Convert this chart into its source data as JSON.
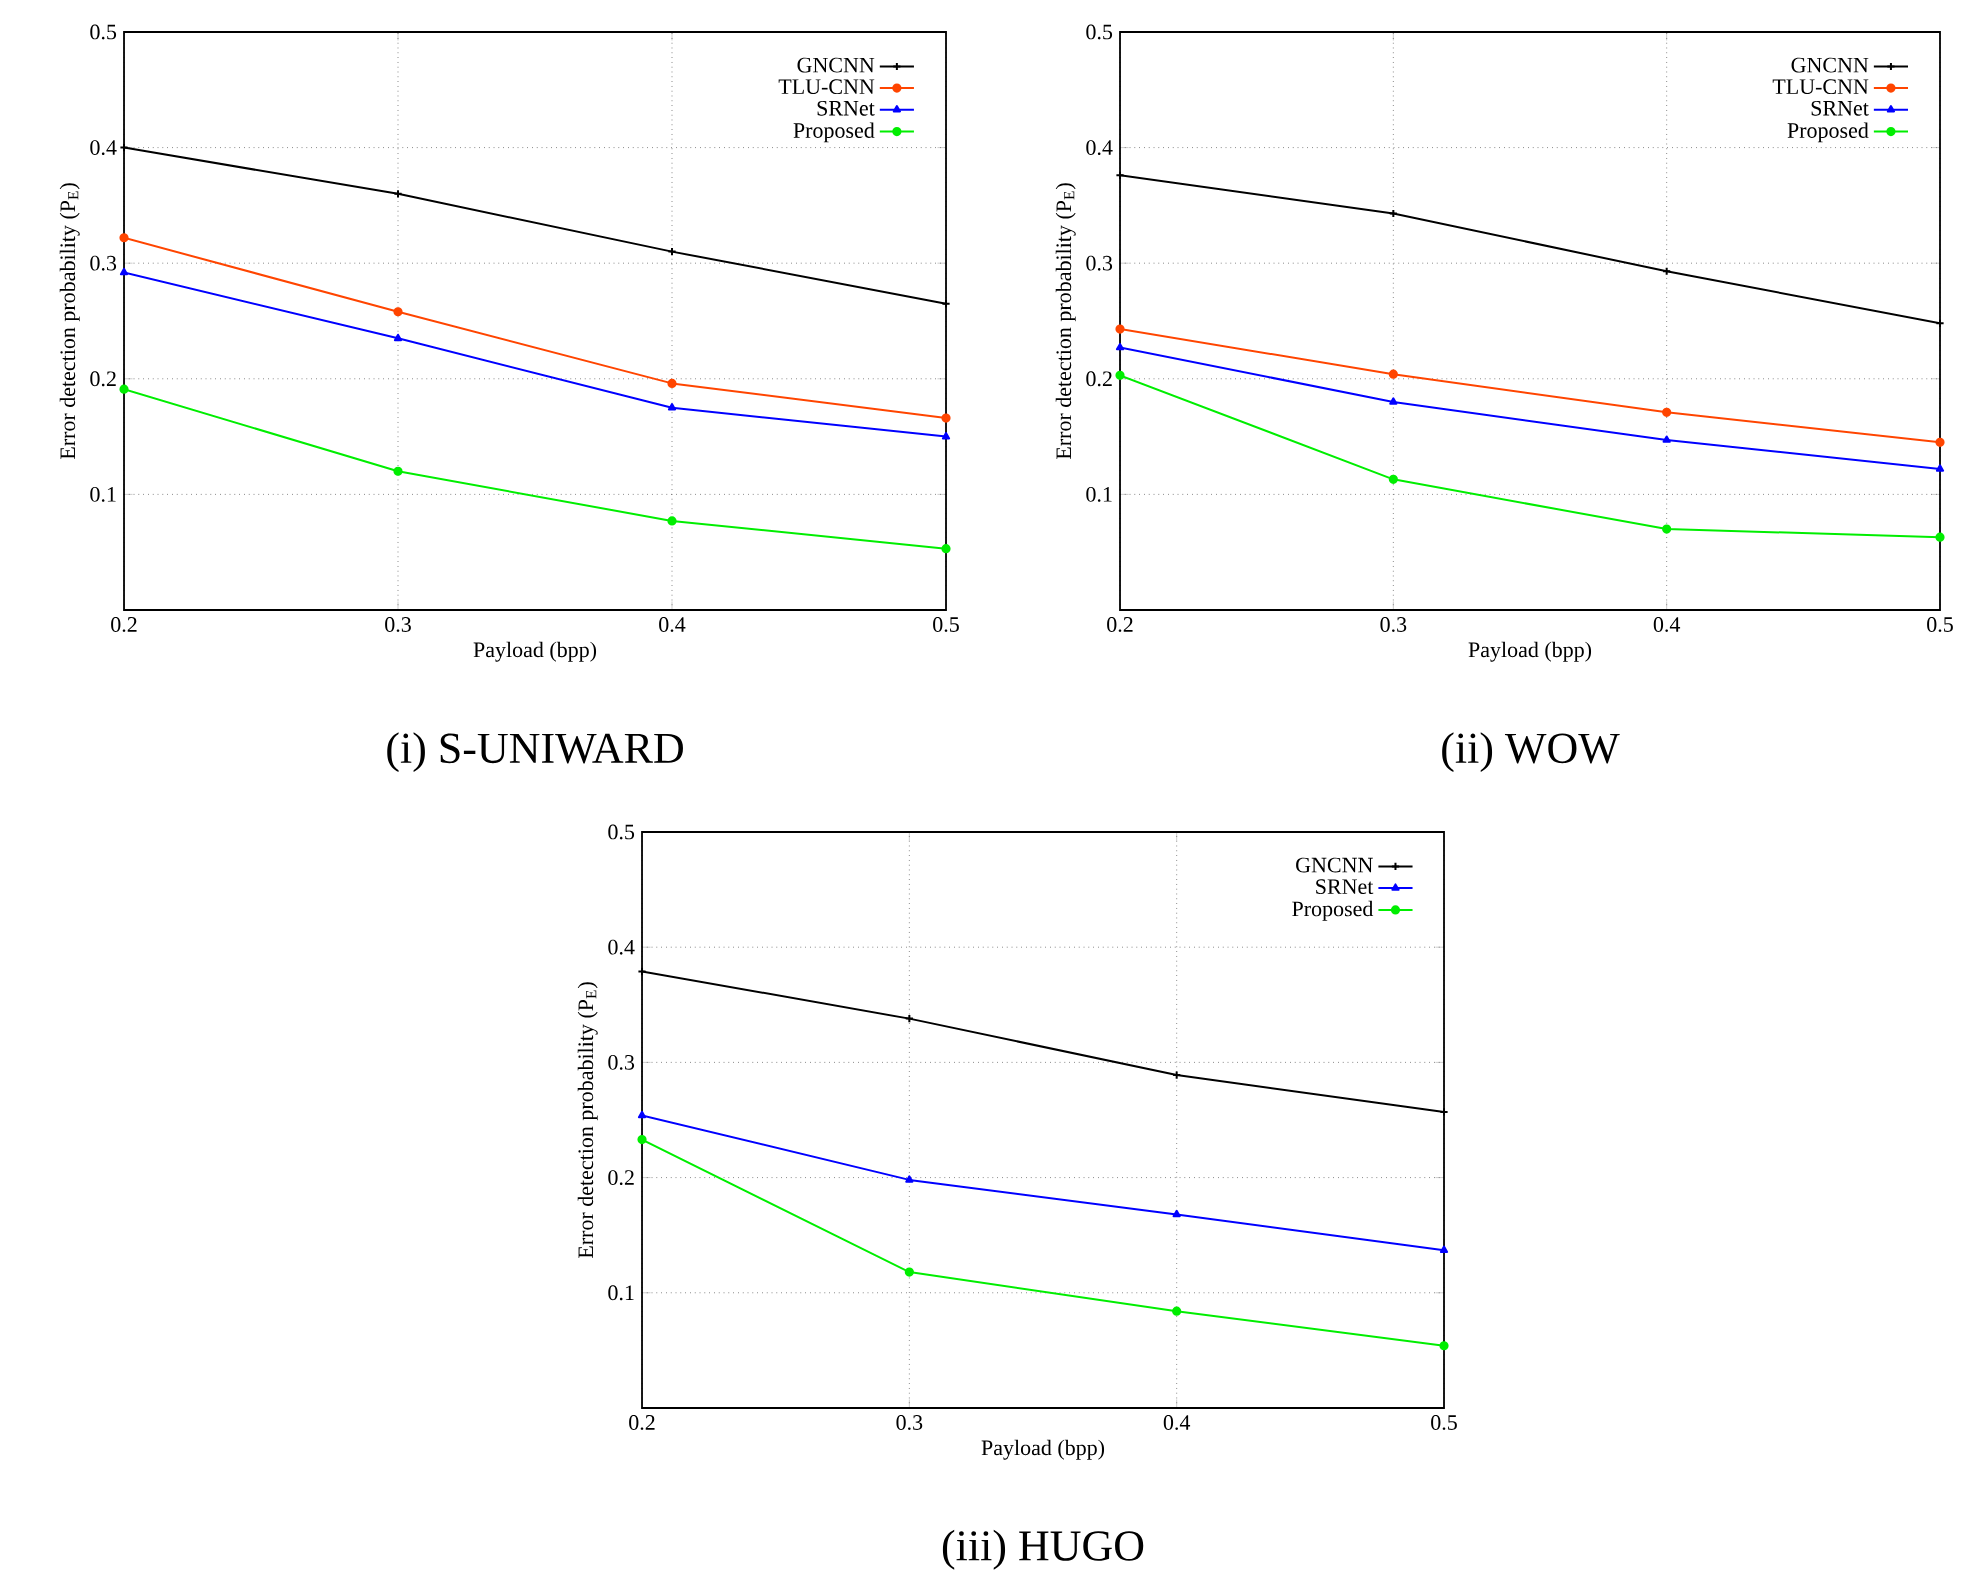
{
  "chart_data": [
    {
      "type": "line",
      "title": "(i) S-UNIWARD",
      "xlabel": "Payload (bpp)",
      "ylabel": "Error detection probability (P$_{E}$)",
      "x": [
        0.2,
        0.3,
        0.4,
        0.5
      ],
      "xlim": [
        0.2,
        0.5
      ],
      "ylim": [
        0,
        0.5
      ],
      "xticks": [
        0.2,
        0.3,
        0.4,
        0.5
      ],
      "yticks": [
        0.1,
        0.2,
        0.3,
        0.4,
        0.5
      ],
      "grid": true,
      "legend": "top right",
      "series": [
        {
          "name": "GNCNN",
          "color": "#000000",
          "marker": "cross",
          "values": [
            0.4,
            0.36,
            0.31,
            0.265
          ]
        },
        {
          "name": "TLU-CNN",
          "color": "#ff4500",
          "marker": "circle",
          "values": [
            0.322,
            0.258,
            0.196,
            0.166
          ]
        },
        {
          "name": "SRNet",
          "color": "#0000ff",
          "marker": "triangle",
          "values": [
            0.292,
            0.235,
            0.175,
            0.15
          ]
        },
        {
          "name": "Proposed",
          "color": "#00ee00",
          "marker": "circle",
          "values": [
            0.191,
            0.12,
            0.077,
            0.053
          ]
        }
      ]
    },
    {
      "type": "line",
      "title": "(ii) WOW",
      "xlabel": "Payload (bpp)",
      "ylabel": "Error detection probability (P$_{E}$)",
      "x": [
        0.2,
        0.3,
        0.4,
        0.5
      ],
      "xlim": [
        0.2,
        0.5
      ],
      "ylim": [
        0,
        0.5
      ],
      "xticks": [
        0.2,
        0.3,
        0.4,
        0.5
      ],
      "yticks": [
        0.1,
        0.2,
        0.3,
        0.4,
        0.5
      ],
      "grid": true,
      "legend": "top right",
      "series": [
        {
          "name": "GNCNN",
          "color": "#000000",
          "marker": "cross",
          "values": [
            0.376,
            0.343,
            0.293,
            0.248
          ]
        },
        {
          "name": "TLU-CNN",
          "color": "#ff4500",
          "marker": "circle",
          "values": [
            0.243,
            0.204,
            0.171,
            0.145
          ]
        },
        {
          "name": "SRNet",
          "color": "#0000ff",
          "marker": "triangle",
          "values": [
            0.227,
            0.18,
            0.147,
            0.122
          ]
        },
        {
          "name": "Proposed",
          "color": "#00ee00",
          "marker": "circle",
          "values": [
            0.203,
            0.113,
            0.07,
            0.063
          ]
        }
      ]
    },
    {
      "type": "line",
      "title": "(iii) HUGO",
      "xlabel": "Payload (bpp)",
      "ylabel": "Error detection probability (P$_{E}$)",
      "x": [
        0.2,
        0.3,
        0.4,
        0.5
      ],
      "xlim": [
        0.2,
        0.5
      ],
      "ylim": [
        0,
        0.5
      ],
      "xticks": [
        0.2,
        0.3,
        0.4,
        0.5
      ],
      "yticks": [
        0.1,
        0.2,
        0.3,
        0.4,
        0.5
      ],
      "grid": true,
      "legend": "top right",
      "series": [
        {
          "name": "GNCNN",
          "color": "#000000",
          "marker": "cross",
          "values": [
            0.379,
            0.338,
            0.289,
            0.257
          ]
        },
        {
          "name": "SRNet",
          "color": "#0000ff",
          "marker": "triangle",
          "values": [
            0.254,
            0.198,
            0.168,
            0.137
          ]
        },
        {
          "name": "Proposed",
          "color": "#00ee00",
          "marker": "circle",
          "values": [
            0.233,
            0.118,
            0.084,
            0.054
          ]
        }
      ]
    }
  ]
}
